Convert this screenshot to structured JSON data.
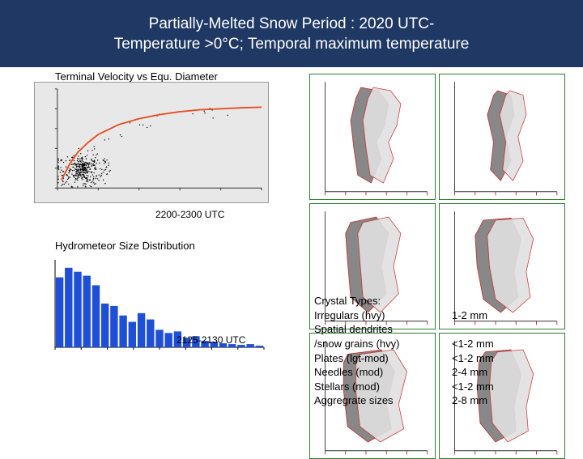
{
  "header": {
    "line1": "Partially-Melted Snow Period : 2020 UTC-",
    "line2": "Temperature >0°C; Temporal maximum temperature"
  },
  "header_bg": "#1f3864",
  "scatter": {
    "label": "Terminal Velocity vs Equ. Diameter",
    "time_label": "2200-2300 UTC",
    "bg": "#e8e8e8",
    "axis_color": "#333333",
    "curve_color": "#e64a19",
    "point_color": "#000000",
    "xlim": [
      0,
      10
    ],
    "ylim": [
      0,
      5
    ],
    "curve": [
      [
        0.2,
        0.4
      ],
      [
        0.6,
        1.2
      ],
      [
        1.0,
        1.8
      ],
      [
        1.5,
        2.3
      ],
      [
        2.0,
        2.7
      ],
      [
        3.0,
        3.2
      ],
      [
        4.0,
        3.5
      ],
      [
        5.0,
        3.7
      ],
      [
        6.0,
        3.85
      ],
      [
        7.0,
        3.95
      ],
      [
        8.0,
        4.0
      ],
      [
        9.0,
        4.05
      ],
      [
        10.0,
        4.08
      ]
    ],
    "cloud_points": 400,
    "cloud_center": [
      1.2,
      0.8
    ],
    "cloud_spread": [
      1.4,
      0.9
    ]
  },
  "histogram": {
    "label": "Hydrometeor Size Distribution",
    "time_label": "2125-2130 UTC",
    "bar_color": "#1f4fd6",
    "axis_color": "#000000",
    "bg": "#ffffff",
    "values": [
      88,
      100,
      95,
      90,
      78,
      55,
      52,
      40,
      32,
      43,
      35,
      22,
      18,
      20,
      12,
      14,
      8,
      7,
      5,
      4,
      3,
      4,
      2
    ],
    "ylim": [
      0,
      110
    ]
  },
  "spectra": {
    "grid_color": "#2e7d32",
    "tick_color": "#333333",
    "outline_color": "#c62828",
    "fill_dark": "#888888",
    "fill_light": "#e0e0e0",
    "panels": [
      {
        "shape": [
          [
            0.35,
            0.05
          ],
          [
            0.52,
            0.08
          ],
          [
            0.62,
            0.2
          ],
          [
            0.58,
            0.4
          ],
          [
            0.5,
            0.55
          ],
          [
            0.55,
            0.7
          ],
          [
            0.45,
            0.92
          ],
          [
            0.32,
            0.85
          ],
          [
            0.28,
            0.6
          ],
          [
            0.25,
            0.35
          ],
          [
            0.3,
            0.15
          ]
        ]
      },
      {
        "shape": [
          [
            0.42,
            0.08
          ],
          [
            0.55,
            0.12
          ],
          [
            0.58,
            0.3
          ],
          [
            0.5,
            0.5
          ],
          [
            0.55,
            0.72
          ],
          [
            0.45,
            0.9
          ],
          [
            0.35,
            0.8
          ],
          [
            0.38,
            0.55
          ],
          [
            0.32,
            0.3
          ],
          [
            0.38,
            0.12
          ]
        ]
      },
      {
        "shape": [
          [
            0.25,
            0.1
          ],
          [
            0.5,
            0.05
          ],
          [
            0.62,
            0.2
          ],
          [
            0.55,
            0.5
          ],
          [
            0.6,
            0.75
          ],
          [
            0.42,
            0.92
          ],
          [
            0.25,
            0.78
          ],
          [
            0.22,
            0.45
          ],
          [
            0.2,
            0.2
          ]
        ]
      },
      {
        "shape": [
          [
            0.28,
            0.08
          ],
          [
            0.55,
            0.06
          ],
          [
            0.65,
            0.25
          ],
          [
            0.58,
            0.55
          ],
          [
            0.62,
            0.78
          ],
          [
            0.45,
            0.92
          ],
          [
            0.28,
            0.8
          ],
          [
            0.22,
            0.5
          ],
          [
            0.2,
            0.22
          ]
        ]
      },
      {
        "shape": [
          [
            0.22,
            0.12
          ],
          [
            0.55,
            0.08
          ],
          [
            0.68,
            0.28
          ],
          [
            0.6,
            0.58
          ],
          [
            0.65,
            0.8
          ],
          [
            0.42,
            0.92
          ],
          [
            0.22,
            0.78
          ],
          [
            0.18,
            0.45
          ],
          [
            0.18,
            0.2
          ]
        ]
      },
      {
        "shape": [
          [
            0.3,
            0.1
          ],
          [
            0.55,
            0.08
          ],
          [
            0.65,
            0.3
          ],
          [
            0.58,
            0.6
          ],
          [
            0.6,
            0.82
          ],
          [
            0.4,
            0.92
          ],
          [
            0.25,
            0.75
          ],
          [
            0.22,
            0.42
          ],
          [
            0.24,
            0.18
          ]
        ]
      }
    ]
  },
  "crystal": {
    "title": "Crystal Types:",
    "rows": [
      {
        "name": "Irregulars (hvy)",
        "size": "1-2 mm"
      },
      {
        "name": "Spatial dendrites",
        "size": ""
      },
      {
        "name": "/snow grains (hvy)",
        "size": "<1-2 mm",
        "indent": true
      },
      {
        "name": "Plates (lgt-mod)",
        "size": "<1-2 mm"
      },
      {
        "name": "Needles (mod)",
        "size": "2-4 mm"
      },
      {
        "name": "Stellars  (mod)",
        "size": "<1-2 mm"
      },
      {
        "name": "Aggregrate sizes",
        "size": "2-8 mm"
      }
    ]
  }
}
